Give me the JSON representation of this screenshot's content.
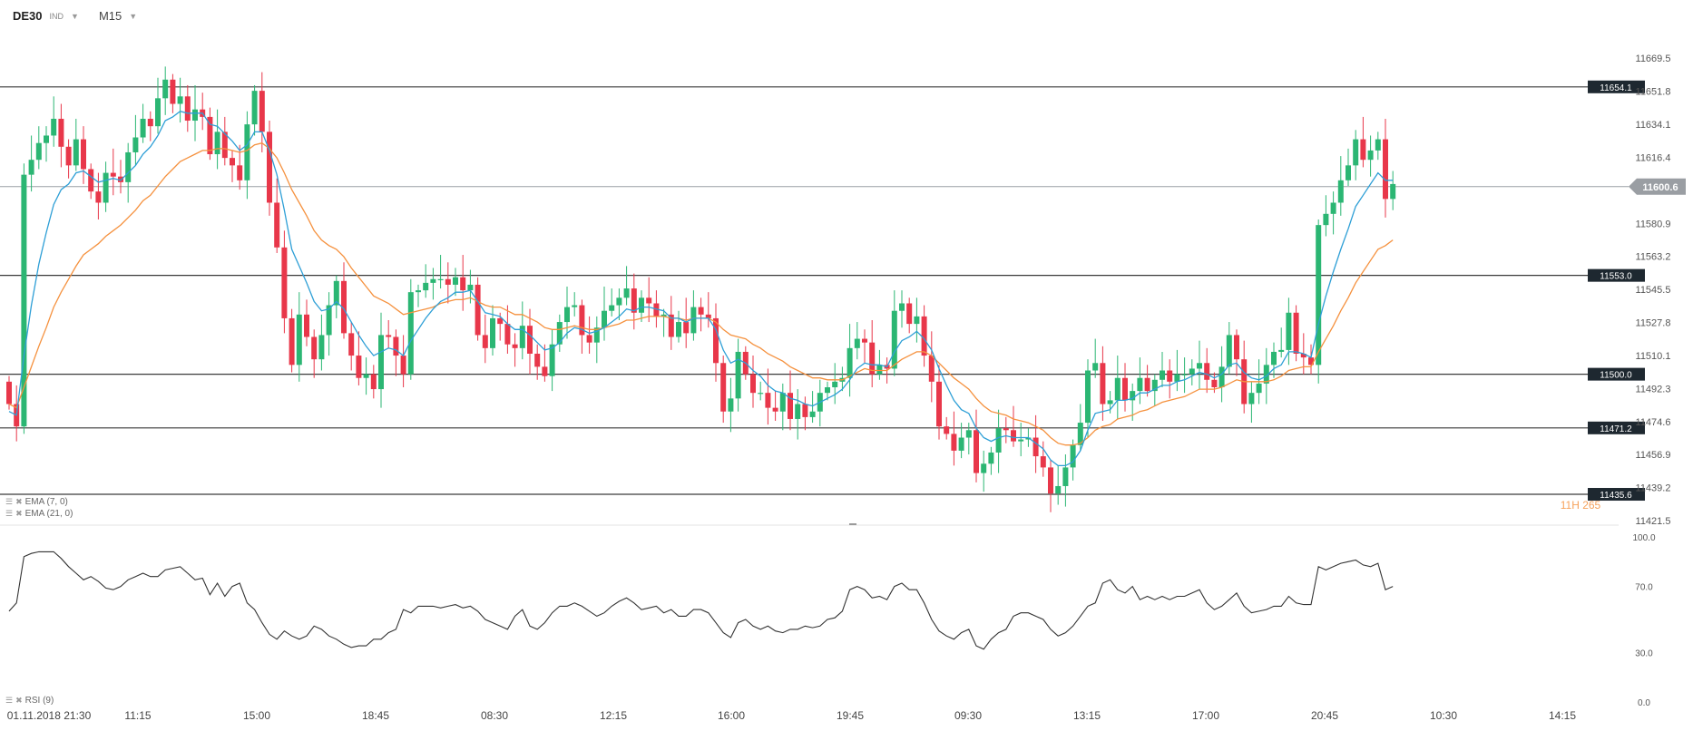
{
  "header": {
    "symbol": "DE30",
    "instrument_type": "IND",
    "timeframe": "M15"
  },
  "indicators": {
    "ema_fast_label": "EMA (7, 0)",
    "ema_slow_label": "EMA (21, 0)",
    "rsi_label": "RSI (9)",
    "overlap_text": "11H 265"
  },
  "colors": {
    "up": "#2bb673",
    "down": "#e8374a",
    "ema_fast": "#2e9fd6",
    "ema_slow": "#f5913e",
    "rsi_line": "#333333",
    "level_line": "#3a3a3a",
    "level_tag_bg": "#1e2830",
    "price_tag_bg": "#9a9ea3"
  },
  "chart_data": [
    {
      "type": "candlestick",
      "timeframe": "M15",
      "current_price": 11600.6,
      "ylim": [
        11421.5,
        11690
      ],
      "y_ticks": [
        11669.5,
        11651.8,
        11634.1,
        11616.4,
        11580.9,
        11563.2,
        11545.5,
        11527.8,
        11510.1,
        11492.3,
        11474.6,
        11456.9,
        11439.2,
        11421.5
      ],
      "x_tick_labels": [
        "01.11.2018  21:30",
        "11:15",
        "15:00",
        "18:45",
        "08:30",
        "12:15",
        "16:00",
        "19:45",
        "09:30",
        "13:15",
        "17:00",
        "20:45",
        "10:30",
        "14:15"
      ],
      "horizontal_levels": [
        11654.1,
        11600.6,
        11553.0,
        11500.0,
        11471.2,
        11435.6
      ],
      "level_labels": [
        "11654.1",
        "11553.0",
        "11500.0",
        "11471.2",
        "11435.6"
      ],
      "price_tag_label": "11600.6",
      "close_series": [
        11484,
        11472,
        11607,
        11615,
        11624,
        11628,
        11637,
        11622,
        11612,
        11626,
        11610,
        11598,
        11592,
        11608,
        11606,
        11603,
        11619,
        11627,
        11637,
        11633,
        11648,
        11658,
        11645,
        11649,
        11636,
        11642,
        11638,
        11618,
        11630,
        11616,
        11612,
        11604,
        11634,
        11652,
        11630,
        11592,
        11568,
        11530,
        11505,
        11532,
        11520,
        11508,
        11521,
        11537,
        11550,
        11522,
        11510,
        11498,
        11500,
        11492,
        11521,
        11520,
        11510,
        11500,
        11544,
        11545,
        11549,
        11551,
        11551,
        11548,
        11552,
        11545,
        11548,
        11521,
        11514,
        11530,
        11527,
        11516,
        11514,
        11526,
        11511,
        11504,
        11499,
        11516,
        11528,
        11536,
        11537,
        11521,
        11517,
        11525,
        11534,
        11537,
        11541,
        11546,
        11533,
        11541,
        11538,
        11531,
        11532,
        11520,
        11528,
        11522,
        11536,
        11532,
        11530,
        11506,
        11480,
        11487,
        11512,
        11500,
        11490,
        11490,
        11482,
        11480,
        11490,
        11476,
        11484,
        11477,
        11480,
        11490,
        11493,
        11496,
        11498,
        11514,
        11519,
        11517,
        11500,
        11505,
        11503,
        11534,
        11538,
        11527,
        11531,
        11510,
        11496,
        11472,
        11468,
        11459,
        11466,
        11470,
        11447,
        11452,
        11458,
        11471,
        11470,
        11464,
        11465,
        11466,
        11456,
        11450,
        11436,
        11440,
        11450,
        11462,
        11474,
        11502,
        11506,
        11484,
        11486,
        11498,
        11486,
        11491,
        11498,
        11491,
        11497,
        11502,
        11496,
        11500,
        11500,
        11503,
        11506,
        11497,
        11493,
        11504,
        11521,
        11508,
        11484,
        11490,
        11495,
        11505,
        11512,
        11513,
        11533,
        11511,
        11509,
        11505,
        11580,
        11586,
        11592,
        11604,
        11612,
        11626,
        11615,
        11620,
        11626,
        11594,
        11602
      ],
      "ema_7": [
        11480,
        11478,
        11510,
        11537,
        11559,
        11576,
        11591,
        11599,
        11602,
        11608,
        11609,
        11606,
        11603,
        11604,
        11605,
        11604,
        11608,
        11612,
        11618,
        11622,
        11628,
        11636,
        11638,
        11641,
        11640,
        11640,
        11640,
        11634,
        11633,
        11629,
        11625,
        11620,
        11623,
        11630,
        11630,
        11620,
        11607,
        11588,
        11567,
        11558,
        11549,
        11539,
        11534,
        11535,
        11539,
        11535,
        11528,
        11521,
        11515,
        11510,
        11512,
        11514,
        11513,
        11510,
        11518,
        11524,
        11530,
        11535,
        11539,
        11541,
        11544,
        11544,
        11545,
        11539,
        11533,
        11532,
        11531,
        11527,
        11524,
        11524,
        11521,
        11517,
        11513,
        11514,
        11517,
        11522,
        11525,
        11524,
        11522,
        11523,
        11525,
        11528,
        11531,
        11535,
        11534,
        11536,
        11536,
        11535,
        11534,
        11530,
        11530,
        11528,
        11530,
        11530,
        11530,
        11524,
        11513,
        11506,
        11508,
        11506,
        11502,
        11499,
        11494,
        11491,
        11490,
        11487,
        11486,
        11484,
        11483,
        11485,
        11487,
        11489,
        11492,
        11497,
        11503,
        11506,
        11505,
        11505,
        11504,
        11512,
        11518,
        11520,
        11523,
        11519,
        11513,
        11503,
        11494,
        11486,
        11481,
        11479,
        11471,
        11466,
        11464,
        11466,
        11467,
        11466,
        11466,
        11466,
        11463,
        11460,
        11454,
        11451,
        11451,
        11453,
        11459,
        11470,
        11479,
        11480,
        11481,
        11486,
        11486,
        11487,
        11490,
        11490,
        11492,
        11494,
        11494,
        11496,
        11497,
        11499,
        11501,
        11500,
        11498,
        11500,
        11505,
        11506,
        11501,
        11498,
        11497,
        11499,
        11503,
        11505,
        11512,
        11512,
        11511,
        11509,
        11527,
        11542,
        11555,
        11567,
        11578,
        11590,
        11596,
        11602,
        11608,
        11604,
        11604
      ],
      "ema_21": [
        11484,
        11482,
        11493,
        11504,
        11515,
        11525,
        11536,
        11544,
        11551,
        11558,
        11564,
        11567,
        11570,
        11574,
        11577,
        11580,
        11584,
        11588,
        11593,
        11596,
        11601,
        11606,
        11610,
        11614,
        11616,
        11618,
        11620,
        11620,
        11621,
        11621,
        11620,
        11619,
        11620,
        11623,
        11624,
        11621,
        11616,
        11608,
        11599,
        11592,
        11585,
        11577,
        11572,
        11569,
        11567,
        11563,
        11557,
        11552,
        11547,
        11542,
        11540,
        11538,
        11535,
        11532,
        11533,
        11534,
        11535,
        11536,
        11538,
        11539,
        11540,
        11540,
        11541,
        11539,
        11537,
        11536,
        11536,
        11534,
        11532,
        11532,
        11530,
        11528,
        11525,
        11524,
        11524,
        11525,
        11526,
        11525,
        11524,
        11524,
        11525,
        11526,
        11527,
        11529,
        11529,
        11530,
        11531,
        11531,
        11531,
        11530,
        11530,
        11529,
        11530,
        11530,
        11530,
        11528,
        11524,
        11521,
        11520,
        11519,
        11516,
        11514,
        11511,
        11509,
        11507,
        11504,
        11502,
        11500,
        11498,
        11498,
        11497,
        11497,
        11497,
        11499,
        11501,
        11503,
        11502,
        11502,
        11502,
        11505,
        11508,
        11510,
        11512,
        11512,
        11510,
        11506,
        11502,
        11498,
        11495,
        11492,
        11487,
        11483,
        11480,
        11479,
        11478,
        11476,
        11475,
        11474,
        11472,
        11470,
        11466,
        11463,
        11462,
        11462,
        11463,
        11466,
        11470,
        11472,
        11473,
        11476,
        11477,
        11478,
        11480,
        11481,
        11483,
        11485,
        11486,
        11487,
        11488,
        11490,
        11492,
        11492,
        11492,
        11493,
        11495,
        11497,
        11496,
        11496,
        11496,
        11496,
        11497,
        11499,
        11502,
        11503,
        11504,
        11504,
        11512,
        11519,
        11526,
        11534,
        11541,
        11549,
        11555,
        11561,
        11567,
        11569,
        11572
      ],
      "rsi_ylim": [
        0,
        100
      ],
      "rsi_ticks": [
        100.0,
        70.0,
        30.0,
        0.0
      ],
      "rsi_9": [
        55,
        60,
        88,
        90,
        91,
        91,
        91,
        87,
        82,
        78,
        74,
        76,
        73,
        69,
        68,
        70,
        74,
        76,
        78,
        76,
        76,
        80,
        81,
        82,
        78,
        74,
        75,
        65,
        72,
        64,
        70,
        72,
        60,
        56,
        48,
        41,
        38,
        43,
        40,
        38,
        40,
        46,
        44,
        40,
        38,
        35,
        33,
        34,
        34,
        38,
        38,
        42,
        44,
        56,
        54,
        58,
        58,
        58,
        57,
        58,
        59,
        57,
        58,
        55,
        50,
        48,
        46,
        44,
        52,
        56,
        46,
        44,
        48,
        54,
        58,
        58,
        60,
        58,
        55,
        52,
        54,
        58,
        61,
        63,
        60,
        56,
        57,
        58,
        54,
        56,
        52,
        52,
        56,
        56,
        54,
        48,
        42,
        39,
        48,
        50,
        46,
        44,
        46,
        43,
        42,
        44,
        44,
        46,
        45,
        46,
        50,
        51,
        55,
        68,
        70,
        68,
        63,
        64,
        62,
        70,
        72,
        68,
        68,
        60,
        50,
        43,
        40,
        38,
        42,
        44,
        34,
        32,
        38,
        42,
        44,
        52,
        54,
        54,
        52,
        50,
        44,
        40,
        42,
        46,
        52,
        58,
        60,
        72,
        74,
        68,
        66,
        70,
        62,
        64,
        62,
        64,
        62,
        64,
        64,
        66,
        68,
        60,
        56,
        58,
        62,
        66,
        58,
        54,
        55,
        56,
        58,
        58,
        64,
        60,
        59,
        59,
        82,
        80,
        82,
        84,
        85,
        86,
        83,
        82,
        84,
        68,
        70
      ]
    }
  ]
}
